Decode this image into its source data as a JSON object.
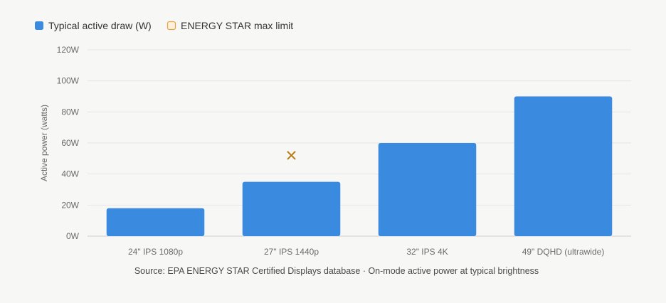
{
  "chart_data": {
    "type": "bar",
    "categories": [
      "24\" IPS 1080p",
      "27\" IPS 1440p",
      "32\" IPS 4K",
      "49\" DQHD (ultrawide)"
    ],
    "series": [
      {
        "name": "Typical active draw (W)",
        "type": "bar",
        "color": "#3a8ae0",
        "values": [
          18,
          35,
          60,
          90
        ]
      },
      {
        "name": "ENERGY STAR max limit",
        "type": "marker",
        "color": "#e6a23c",
        "marker_color": "#b87a12",
        "values": [
          null,
          52,
          null,
          null
        ]
      }
    ],
    "ylabel": "Active power (watts)",
    "xlabel": "",
    "ylim": [
      0,
      120
    ],
    "yticks": [
      0,
      20,
      40,
      60,
      80,
      100,
      120
    ],
    "ytick_labels": [
      "0W",
      "20W",
      "40W",
      "60W",
      "80W",
      "100W",
      "120W"
    ],
    "grid": true,
    "legend_position": "top-left",
    "source": "Source: EPA ENERGY STAR Certified Displays database · On-mode active power at typical brightness"
  }
}
